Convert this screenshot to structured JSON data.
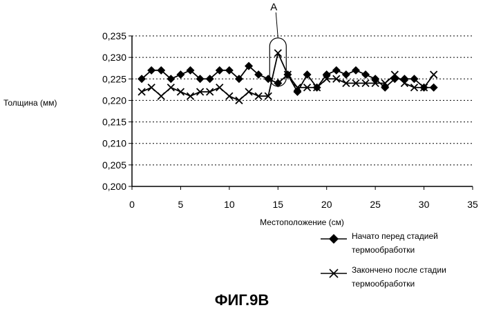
{
  "chart_data": {
    "type": "line",
    "xlabel": "Местоположение (см)",
    "ylabel": "Толщина (мм)",
    "xlim": [
      0,
      35
    ],
    "ylim": [
      0.2,
      0.235
    ],
    "x_ticks": [
      "0",
      "5",
      "10",
      "15",
      "20",
      "25",
      "30",
      "35"
    ],
    "y_ticks": [
      "0,200",
      "0,205",
      "0,210",
      "0,215",
      "0,220",
      "0,225",
      "0,230",
      "0,235"
    ],
    "grid": "horizontal dotted",
    "legend_position": "bottom-right, below plot",
    "series": [
      {
        "name": "Начато перед стадией термообработки",
        "marker": "diamond",
        "color": "#000000",
        "x": [
          1,
          2,
          3,
          4,
          5,
          6,
          7,
          8,
          9,
          10,
          11,
          12,
          13,
          14,
          15,
          16,
          17,
          18,
          19,
          20,
          21,
          22,
          23,
          24,
          25,
          26,
          27,
          28,
          29,
          30,
          31
        ],
        "y": [
          0.225,
          0.227,
          0.227,
          0.225,
          0.226,
          0.227,
          0.225,
          0.225,
          0.227,
          0.227,
          0.225,
          0.228,
          0.226,
          0.225,
          0.224,
          0.226,
          0.222,
          0.226,
          0.223,
          0.226,
          0.227,
          0.226,
          0.227,
          0.226,
          0.225,
          0.223,
          0.225,
          0.225,
          0.225,
          0.223,
          0.223
        ]
      },
      {
        "name": "Закончено после стадии термообработки",
        "marker": "x",
        "color": "#000000",
        "x": [
          1,
          2,
          3,
          4,
          5,
          6,
          7,
          8,
          9,
          10,
          11,
          12,
          13,
          14,
          15,
          16,
          17,
          18,
          19,
          20,
          21,
          22,
          23,
          24,
          25,
          26,
          27,
          28,
          29,
          30,
          31
        ],
        "y": [
          0.222,
          0.223,
          0.221,
          0.223,
          0.222,
          0.221,
          0.222,
          0.222,
          0.223,
          0.221,
          0.22,
          0.222,
          0.221,
          0.221,
          0.231,
          0.226,
          0.223,
          0.223,
          0.223,
          0.225,
          0.225,
          0.224,
          0.224,
          0.224,
          0.224,
          0.224,
          0.226,
          0.224,
          0.223,
          0.223,
          0.226
        ]
      }
    ],
    "annotation": {
      "label": "A",
      "target_series": 1,
      "target_x": 15
    }
  },
  "legend": {
    "series1_line1": "Начато перед стадией",
    "series1_line2": "термообработки",
    "series2_line1": "Закончено после стадии",
    "series2_line2": "термообработки"
  },
  "figure_caption": "ФИГ.9В"
}
